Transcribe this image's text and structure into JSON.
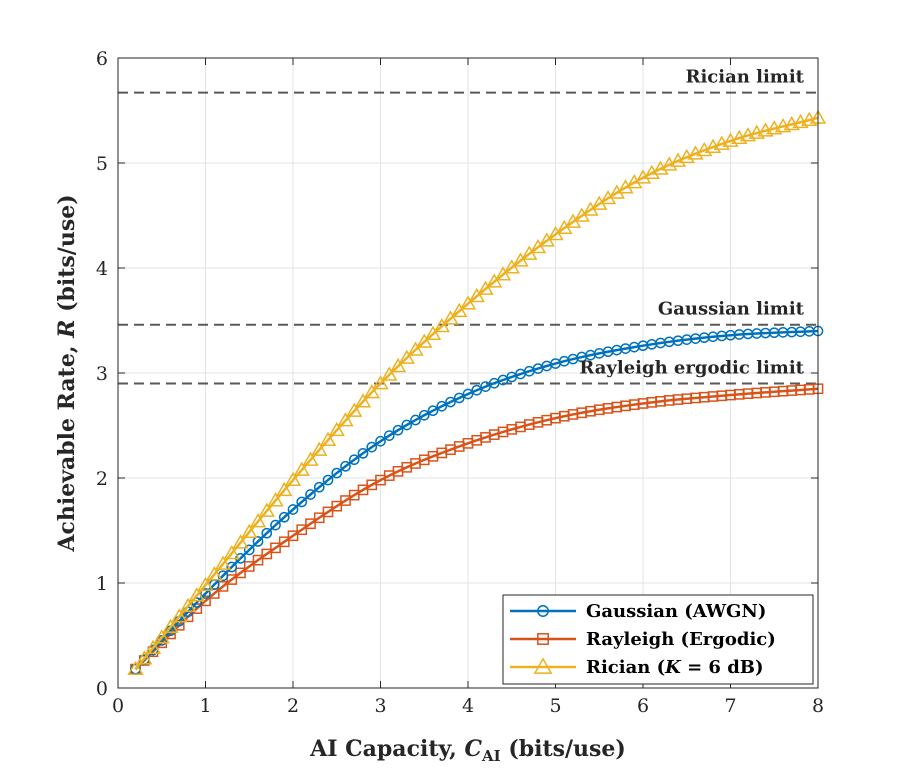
{
  "chart_data": {
    "type": "line",
    "title": "",
    "xlabel_prefix": "AI Capacity, ",
    "xlabel_var": "C",
    "xlabel_sub": "AI",
    "xlabel_suffix": " (bits/use)",
    "ylabel_prefix": "Achievable Rate, ",
    "ylabel_var": "R",
    "ylabel_suffix": " (bits/use)",
    "xlim": [
      0,
      8
    ],
    "ylim": [
      0,
      6
    ],
    "xticks": [
      "0",
      "1",
      "2",
      "3",
      "4",
      "5",
      "6",
      "7",
      "8"
    ],
    "yticks": [
      "0",
      "1",
      "2",
      "3",
      "4",
      "5",
      "6"
    ],
    "grid": true,
    "legend_position": "bottom-right",
    "x_start": 0.2,
    "x_step": 0.1,
    "n_points": 79,
    "series": [
      {
        "name": "Gaussian (AWGN)",
        "legend_parts": [
          "Gaussian (AWGN)"
        ],
        "color": "#0072BD",
        "marker": "circle",
        "limit": 3.46,
        "anchors_x": [
          0.2,
          1.0,
          2.0,
          3.0,
          4.0,
          5.0,
          6.0,
          7.0,
          8.0
        ],
        "anchors_y": [
          0.18,
          0.9,
          1.7,
          2.35,
          2.8,
          3.09,
          3.26,
          3.36,
          3.4
        ]
      },
      {
        "name": "Rayleigh (Ergodic)",
        "legend_parts": [
          "Rayleigh (Ergodic)"
        ],
        "color": "#D95319",
        "marker": "square",
        "limit": 2.9,
        "anchors_x": [
          0.2,
          1.0,
          2.0,
          3.0,
          4.0,
          5.0,
          6.0,
          7.0,
          8.0
        ],
        "anchors_y": [
          0.18,
          0.83,
          1.45,
          1.98,
          2.33,
          2.57,
          2.71,
          2.79,
          2.85
        ]
      },
      {
        "name": "Rician (K = 6 dB)",
        "legend_parts": [
          "Rician (",
          "K",
          " = 6 dB)"
        ],
        "color": "#EDB120",
        "marker": "triangle",
        "limit": 5.67,
        "anchors_x": [
          0.2,
          1.0,
          2.0,
          3.0,
          4.0,
          5.0,
          6.0,
          7.0,
          8.0
        ],
        "anchors_y": [
          0.18,
          0.98,
          1.98,
          2.9,
          3.66,
          4.32,
          4.86,
          5.21,
          5.43
        ]
      }
    ],
    "annotations": [
      {
        "text": "Rician limit",
        "y": 5.67
      },
      {
        "text": "Gaussian limit",
        "y": 3.46
      },
      {
        "text": "Rayleigh ergodic limit",
        "y": 2.9
      }
    ]
  }
}
